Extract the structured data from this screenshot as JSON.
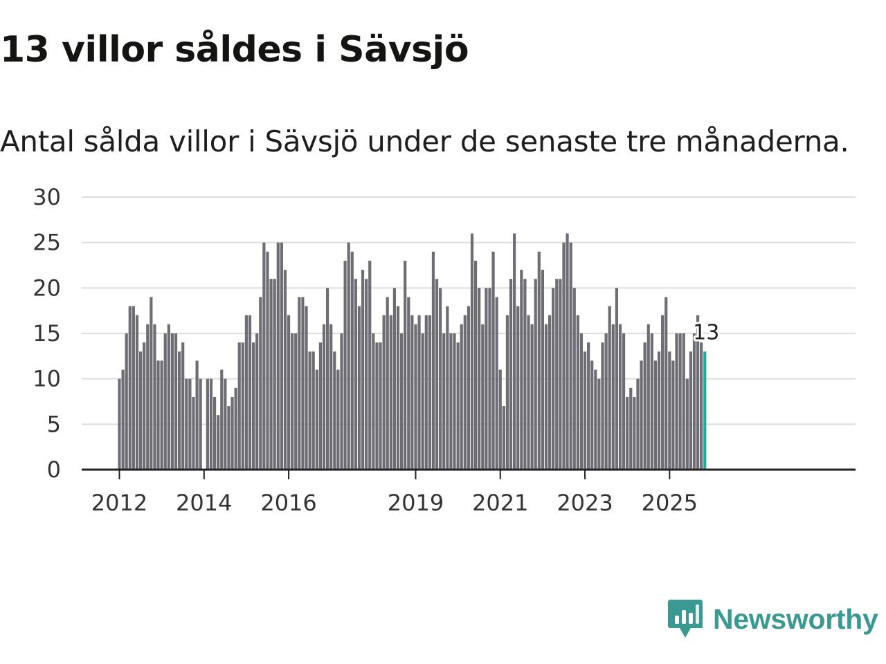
{
  "header": {
    "title": "13 villor såldes i Sävsjö",
    "subtitle": "Antal sålda villor i Sävsjö under de senaste tre månaderna."
  },
  "brand": {
    "name": "Newsworthy",
    "icon": "newsworthy-logo-icon",
    "color": "#3a9a91"
  },
  "colors": {
    "bar": "#6e6d74",
    "highlight": "#2ca59c",
    "grid": "#dddddd",
    "axis": "#222222"
  },
  "chart_data": {
    "type": "bar",
    "title": "13 villor såldes i Sävsjö",
    "subtitle": "Antal sålda villor i Sävsjö under de senaste tre månaderna.",
    "xlabel": "",
    "ylabel": "",
    "ylim": [
      0,
      30
    ],
    "yticks": [
      0,
      5,
      10,
      15,
      20,
      25,
      30
    ],
    "grid": true,
    "x_start": "2012-01",
    "frequency": "monthly, rolling three-month total",
    "xtick_labels": [
      {
        "label": "2012",
        "index": 0
      },
      {
        "label": "2014",
        "index": 24
      },
      {
        "label": "2016",
        "index": 48
      },
      {
        "label": "2019",
        "index": 84
      },
      {
        "label": "2021",
        "index": 108
      },
      {
        "label": "2023",
        "index": 132
      },
      {
        "label": "2025",
        "index": 156
      }
    ],
    "highlight_index": 166,
    "highlight_label": "13",
    "values": [
      10,
      11,
      15,
      18,
      18,
      17,
      13,
      14,
      16,
      19,
      16,
      12,
      12,
      15,
      16,
      15,
      15,
      13,
      14,
      10,
      10,
      8,
      12,
      10,
      0,
      10,
      10,
      8,
      6,
      11,
      10,
      7,
      8,
      9,
      14,
      14,
      17,
      17,
      14,
      15,
      19,
      25,
      24,
      21,
      21,
      25,
      25,
      22,
      17,
      15,
      15,
      19,
      19,
      18,
      13,
      13,
      11,
      14,
      16,
      20,
      16,
      13,
      11,
      15,
      23,
      25,
      24,
      21,
      18,
      22,
      21,
      23,
      15,
      14,
      14,
      17,
      19,
      17,
      20,
      18,
      15,
      23,
      19,
      17,
      16,
      17,
      15,
      17,
      17,
      24,
      21,
      20,
      15,
      18,
      15,
      15,
      14,
      16,
      17,
      18,
      26,
      23,
      20,
      16,
      20,
      20,
      24,
      19,
      11,
      7,
      17,
      21,
      26,
      18,
      22,
      21,
      17,
      16,
      21,
      24,
      22,
      16,
      17,
      20,
      21,
      21,
      25,
      26,
      25,
      20,
      17,
      15,
      13,
      14,
      12,
      11,
      10,
      14,
      15,
      18,
      16,
      20,
      16,
      15,
      8,
      9,
      8,
      10,
      12,
      14,
      16,
      15,
      12,
      13,
      17,
      19,
      13,
      12,
      15,
      15,
      15,
      10,
      13,
      15,
      17,
      14,
      13
    ]
  }
}
